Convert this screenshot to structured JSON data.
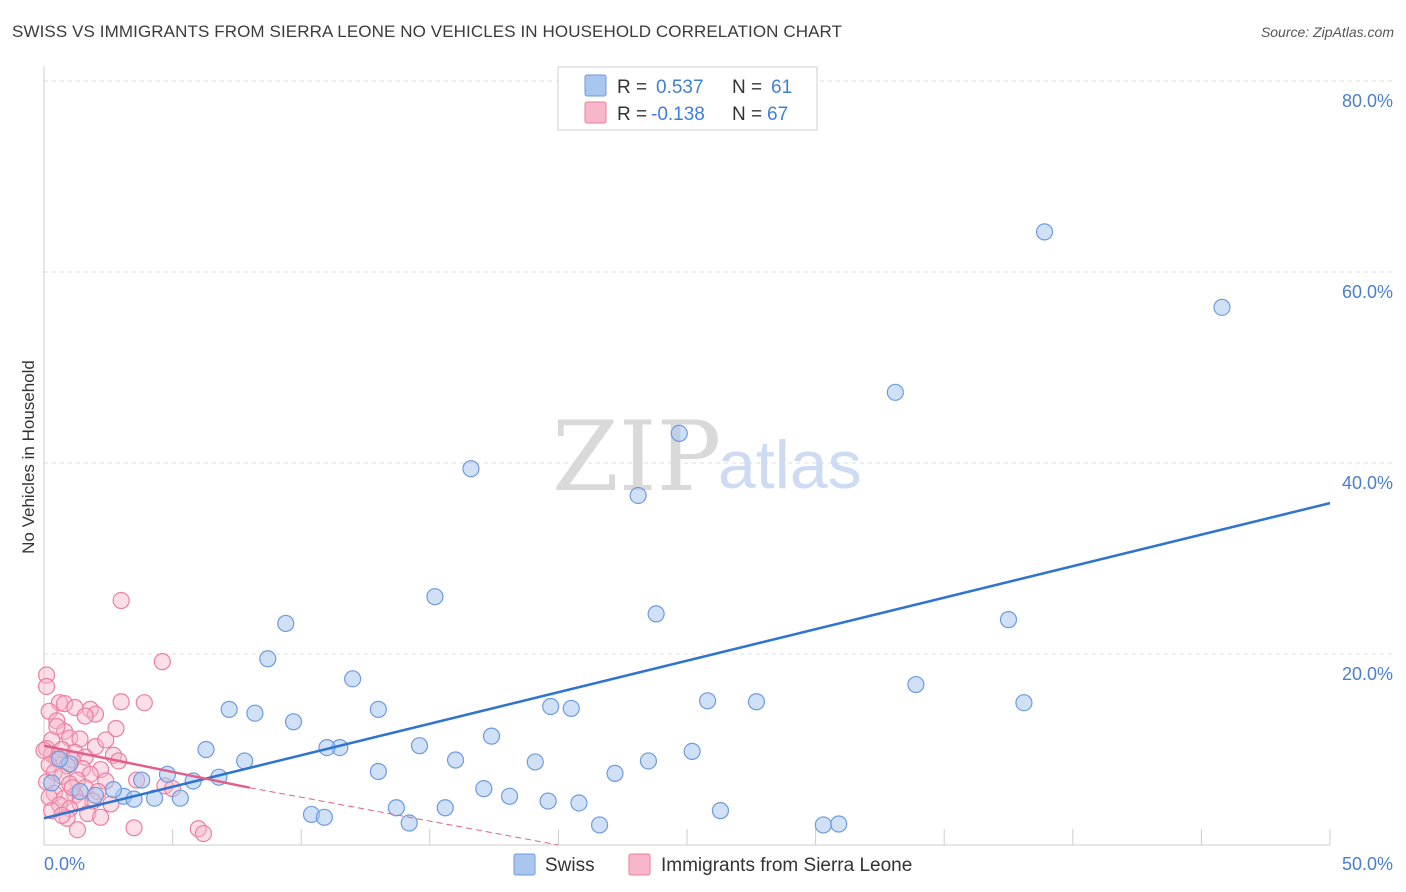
{
  "title": "SWISS VS IMMIGRANTS FROM SIERRA LEONE NO VEHICLES IN HOUSEHOLD CORRELATION CHART",
  "source": "Source: ZipAtlas.com",
  "watermark": {
    "zip": "ZIP",
    "atlas": "atlas"
  },
  "legend": {
    "swiss": {
      "r_label": "R =",
      "r_value": "0.537",
      "n_label": "N =",
      "n_value": "61"
    },
    "sierra": {
      "r_label": "R =",
      "r_value": "-0.138",
      "n_label": "N =",
      "n_value": "67"
    }
  },
  "colors": {
    "swiss_fill": "#a9c6ef",
    "swiss_stroke": "#6d9be0",
    "swiss_line": "#2f74d0",
    "sierra_fill": "#f7b6c9",
    "sierra_stroke": "#ec7fa0",
    "sierra_line": "#e0608c",
    "grid": "#dcdcdc",
    "axis_label": "#4a7fd0"
  },
  "chart_data": {
    "type": "scatter",
    "title": "SWISS VS IMMIGRANTS FROM SIERRA LEONE NO VEHICLES IN HOUSEHOLD CORRELATION CHART",
    "xlabel": "",
    "ylabel": "No Vehicles in Household",
    "xlim": [
      0,
      50
    ],
    "ylim": [
      0,
      80
    ],
    "x_tick_labels": [
      "0.0%",
      "50.0%"
    ],
    "y_ticks": [
      20,
      40,
      60,
      80
    ],
    "y_tick_labels": [
      "20.0%",
      "40.0%",
      "60.0%",
      "80.0%"
    ],
    "legend_bottom": [
      "Swiss",
      "Immigrants from Sierra Leone"
    ],
    "series": [
      {
        "name": "Swiss",
        "r": 0.537,
        "n": 61,
        "points": [
          [
            38.9,
            64.2
          ],
          [
            45.8,
            56.3
          ],
          [
            33.1,
            47.4
          ],
          [
            24.7,
            43.1
          ],
          [
            16.6,
            39.4
          ],
          [
            23.1,
            36.6
          ],
          [
            15.2,
            26.0
          ],
          [
            23.8,
            24.2
          ],
          [
            37.5,
            23.6
          ],
          [
            9.4,
            23.2
          ],
          [
            8.7,
            19.5
          ],
          [
            12.0,
            17.4
          ],
          [
            33.9,
            16.8
          ],
          [
            38.1,
            14.9
          ],
          [
            25.8,
            15.1
          ],
          [
            27.7,
            15.0
          ],
          [
            19.7,
            14.5
          ],
          [
            20.5,
            14.3
          ],
          [
            13.0,
            14.2
          ],
          [
            7.2,
            14.2
          ],
          [
            8.2,
            13.8
          ],
          [
            9.7,
            12.9
          ],
          [
            17.4,
            11.4
          ],
          [
            14.6,
            10.4
          ],
          [
            11.5,
            10.2
          ],
          [
            11.0,
            10.2
          ],
          [
            6.3,
            10.0
          ],
          [
            7.8,
            8.8
          ],
          [
            23.5,
            8.8
          ],
          [
            25.2,
            9.8
          ],
          [
            16.0,
            8.9
          ],
          [
            19.1,
            8.7
          ],
          [
            13.0,
            7.7
          ],
          [
            22.2,
            7.5
          ],
          [
            4.8,
            7.4
          ],
          [
            6.8,
            7.1
          ],
          [
            3.8,
            6.8
          ],
          [
            5.8,
            6.7
          ],
          [
            17.1,
            5.9
          ],
          [
            18.1,
            5.1
          ],
          [
            2.0,
            5.2
          ],
          [
            3.1,
            5.1
          ],
          [
            3.5,
            4.8
          ],
          [
            4.3,
            4.9
          ],
          [
            5.3,
            4.9
          ],
          [
            19.6,
            4.6
          ],
          [
            20.8,
            4.4
          ],
          [
            13.7,
            3.9
          ],
          [
            15.6,
            3.9
          ],
          [
            26.3,
            3.6
          ],
          [
            10.4,
            3.2
          ],
          [
            10.9,
            2.9
          ],
          [
            14.2,
            2.3
          ],
          [
            21.6,
            2.1
          ],
          [
            30.3,
            2.1
          ],
          [
            30.9,
            2.2
          ],
          [
            0.3,
            6.5
          ],
          [
            1.0,
            8.5
          ],
          [
            1.4,
            5.6
          ],
          [
            2.7,
            5.8
          ],
          [
            0.6,
            9.0
          ]
        ]
      },
      {
        "name": "Immigrants from Sierra Leone",
        "r": -0.138,
        "n": 67,
        "points": [
          [
            3.0,
            25.6
          ],
          [
            4.6,
            19.2
          ],
          [
            0.1,
            17.8
          ],
          [
            0.1,
            16.6
          ],
          [
            3.0,
            15.0
          ],
          [
            3.9,
            14.9
          ],
          [
            0.6,
            14.9
          ],
          [
            0.8,
            14.8
          ],
          [
            1.2,
            14.4
          ],
          [
            0.2,
            14.0
          ],
          [
            1.8,
            14.2
          ],
          [
            2.0,
            13.7
          ],
          [
            1.6,
            13.5
          ],
          [
            0.5,
            13.0
          ],
          [
            2.8,
            12.2
          ],
          [
            0.8,
            11.9
          ],
          [
            1.0,
            11.2
          ],
          [
            0.3,
            11.0
          ],
          [
            1.4,
            11.1
          ],
          [
            2.0,
            10.3
          ],
          [
            0.1,
            10.1
          ],
          [
            0.7,
            10.0
          ],
          [
            1.2,
            9.7
          ],
          [
            0.3,
            9.5
          ],
          [
            2.7,
            9.4
          ],
          [
            1.6,
            9.2
          ],
          [
            0.5,
            9.0
          ],
          [
            1.1,
            8.9
          ],
          [
            2.9,
            8.8
          ],
          [
            0.2,
            8.4
          ],
          [
            0.9,
            8.3
          ],
          [
            1.5,
            8.0
          ],
          [
            2.2,
            7.9
          ],
          [
            0.4,
            7.6
          ],
          [
            1.8,
            7.4
          ],
          [
            0.7,
            7.2
          ],
          [
            1.3,
            6.8
          ],
          [
            2.4,
            6.7
          ],
          [
            0.1,
            6.6
          ],
          [
            1.0,
            6.4
          ],
          [
            3.6,
            6.8
          ],
          [
            4.7,
            6.2
          ],
          [
            5.0,
            5.9
          ],
          [
            1.6,
            6.0
          ],
          [
            2.1,
            5.6
          ],
          [
            0.4,
            5.4
          ],
          [
            1.2,
            5.2
          ],
          [
            0.2,
            5.0
          ],
          [
            0.8,
            4.9
          ],
          [
            1.9,
            4.6
          ],
          [
            1.4,
            4.4
          ],
          [
            0.6,
            4.2
          ],
          [
            2.6,
            4.3
          ],
          [
            1.0,
            3.8
          ],
          [
            0.3,
            3.6
          ],
          [
            1.7,
            3.3
          ],
          [
            2.2,
            2.9
          ],
          [
            0.9,
            2.8
          ],
          [
            3.5,
            1.8
          ],
          [
            1.3,
            1.6
          ],
          [
            6.0,
            1.7
          ],
          [
            6.2,
            1.2
          ],
          [
            0.5,
            12.4
          ],
          [
            2.4,
            11.0
          ],
          [
            0.0,
            9.9
          ],
          [
            1.1,
            6.0
          ],
          [
            0.7,
            3.1
          ]
        ]
      }
    ],
    "trend_lines": [
      {
        "series": "Swiss",
        "x0": 0,
        "y0": 2.8,
        "x1": 50,
        "y1": 35.8
      },
      {
        "series": "Immigrants from Sierra Leone",
        "x0": 0,
        "y0": 10.4,
        "x1": 8.0,
        "y1": 6.0,
        "dashed_to_x": 20.0,
        "dashed_to_y": 0.0
      }
    ]
  }
}
